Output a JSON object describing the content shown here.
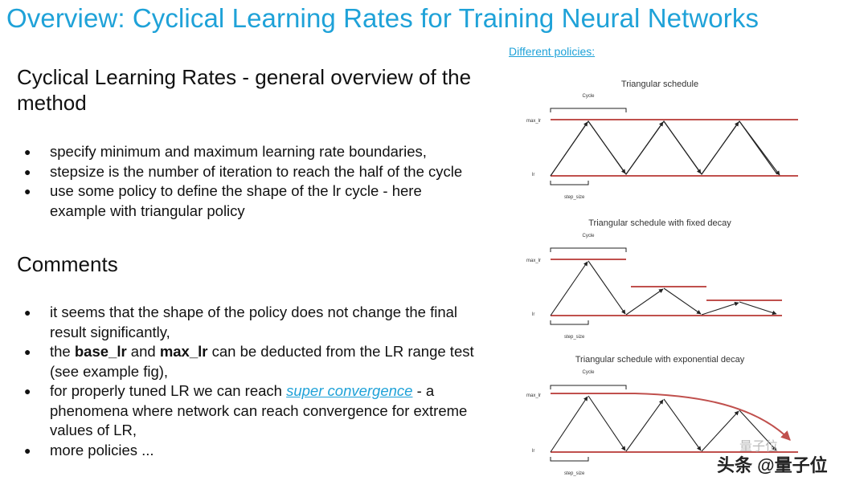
{
  "title": "Overview: Cyclical Learning Rates for Training Neural Networks",
  "section1": {
    "heading": "Cyclical Learning Rates - general overview of the method",
    "bullets": [
      "specify minimum and maximum learning rate boundaries,",
      "stepsize is the number of iteration to reach the half of the cycle",
      "use some policy to define the shape of the lr cycle - here example with triangular policy"
    ]
  },
  "section2": {
    "heading": "Comments",
    "bullet1": "it seems that the shape of the policy does not change the final result significantly,",
    "bullet2": {
      "pre": "the ",
      "b1": "base_lr",
      "mid": " and ",
      "b2": "max_lr",
      "post": " can be deducted from the LR range test (see example fig),"
    },
    "bullet3": {
      "pre": "for properly tuned LR we can reach ",
      "link": "super convergence",
      "post": " - a phenomena where network can reach convergence for extreme values of LR,"
    },
    "bullet4": "more policies ..."
  },
  "policies_link": "Different policies:",
  "diagrams": {
    "d1": {
      "title": "Triangular schedule",
      "cycle": "Cycle",
      "max": "max_lr",
      "min": "lr",
      "step": "step_size"
    },
    "d2": {
      "title": "Triangular schedule with fixed decay",
      "cycle": "Cycle",
      "max": "max_lr",
      "min": "lr",
      "step": "step_size"
    },
    "d3": {
      "title": "Triangular schedule with exponential decay",
      "cycle": "Cycle",
      "max": "max_lr",
      "min": "lr",
      "step": "step_size"
    }
  },
  "watermark": "头条 @量子位",
  "watermark_faint": "量子位",
  "colors": {
    "title": "#1fa2d8",
    "boundary": "#c0504d",
    "curve": "#222222"
  }
}
